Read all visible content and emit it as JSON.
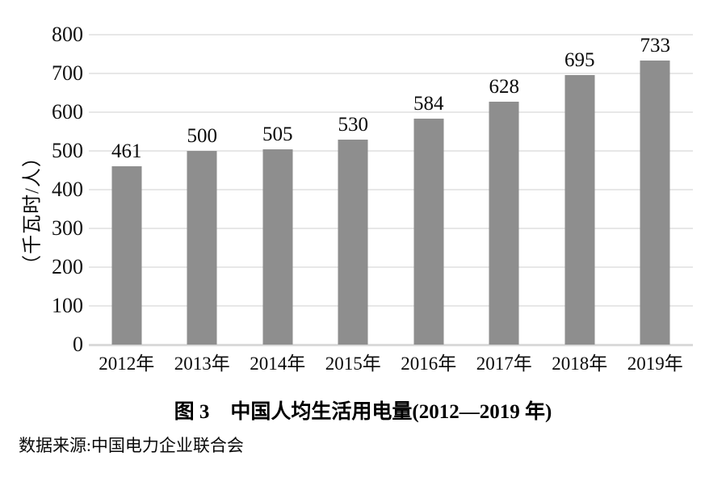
{
  "figure": {
    "caption": {
      "label": "图 3",
      "title": "中国人均生活用电量(2012—2019 年)"
    },
    "source": "数据来源:中国电力企业联合会"
  },
  "chart_data": {
    "type": "bar",
    "categories": [
      "2012年",
      "2013年",
      "2014年",
      "2015年",
      "2016年",
      "2017年",
      "2018年",
      "2019年"
    ],
    "values": [
      461,
      500,
      505,
      530,
      584,
      628,
      695,
      733
    ],
    "title": "图3 中国人均生活用电量(2012—2019年)",
    "xlabel": "",
    "ylabel": "（千瓦时/人）",
    "ylim": [
      0,
      800
    ],
    "yticks": [
      0,
      100,
      200,
      300,
      400,
      500,
      600,
      700,
      800
    ],
    "grid": "horizontal",
    "legend_position": "none",
    "data_labels": "above-bars",
    "colors": {
      "bar": "#8e8e8e",
      "gridline": "#e7e7e7",
      "baseline": "#dadada",
      "text": "#0a0a0a",
      "background": "#ffffff"
    }
  }
}
